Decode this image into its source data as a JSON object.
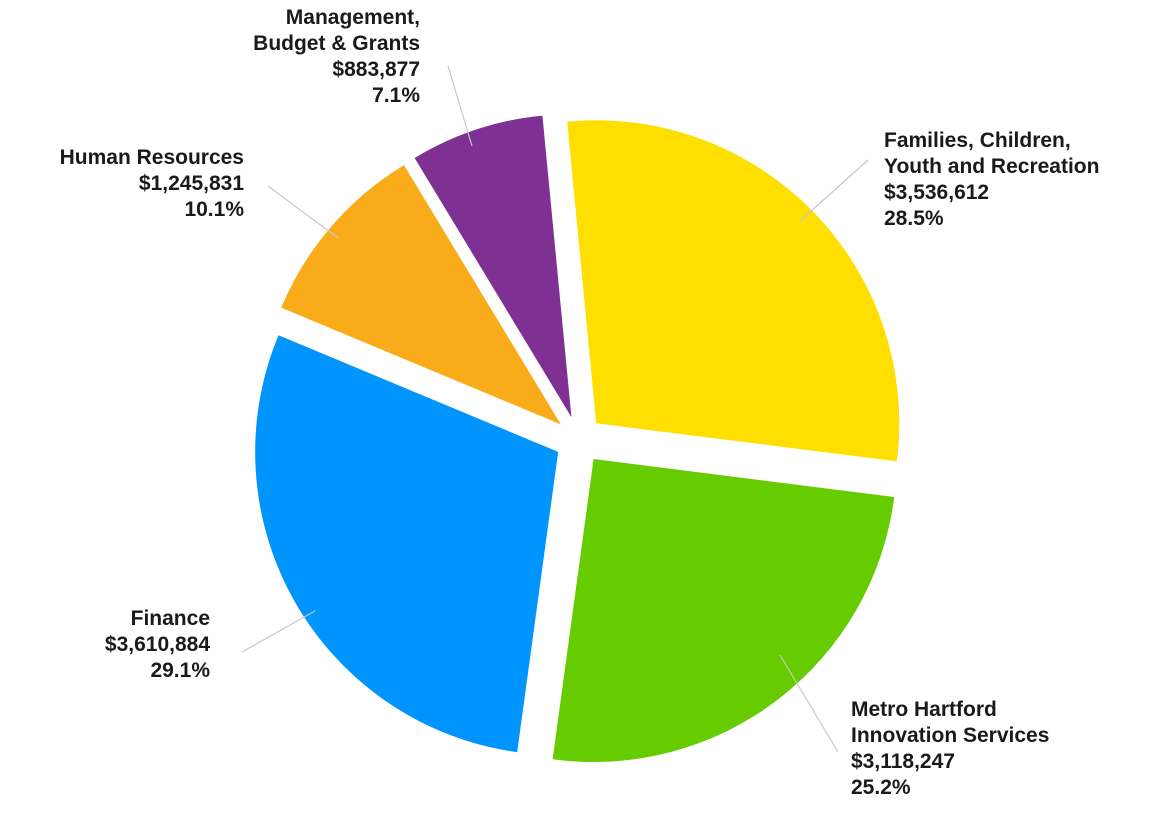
{
  "chart_data": {
    "type": "pie",
    "title": "",
    "start_slice": "Families, Children, Youth and Recreation",
    "slices": [
      {
        "key": "families",
        "label_lines": [
          "Families, Children,",
          "Youth and Recreation"
        ],
        "value": 3536612,
        "value_label": "$3,536,612",
        "percent": 28.5,
        "percent_label": "28.5%",
        "color": "#FFDF00"
      },
      {
        "key": "metro",
        "label_lines": [
          "Metro Hartford",
          "Innovation Services"
        ],
        "value": 3118247,
        "value_label": "$3,118,247",
        "percent": 25.2,
        "percent_label": "25.2%",
        "color": "#66CC00"
      },
      {
        "key": "finance",
        "label_lines": [
          "Finance"
        ],
        "value": 3610884,
        "value_label": "$3,610,884",
        "percent": 29.1,
        "percent_label": "29.1%",
        "color": "#0094FF"
      },
      {
        "key": "hr",
        "label_lines": [
          "Human Resources"
        ],
        "value": 1245831,
        "value_label": "$1,245,831",
        "percent": 10.1,
        "percent_label": "10.1%",
        "color": "#FAAB19"
      },
      {
        "key": "mbg",
        "label_lines": [
          "Management,",
          "Budget & Grants"
        ],
        "value": 883877,
        "value_label": "$883,877",
        "percent": 7.1,
        "percent_label": "7.1%",
        "color": "#7E3193"
      }
    ]
  }
}
